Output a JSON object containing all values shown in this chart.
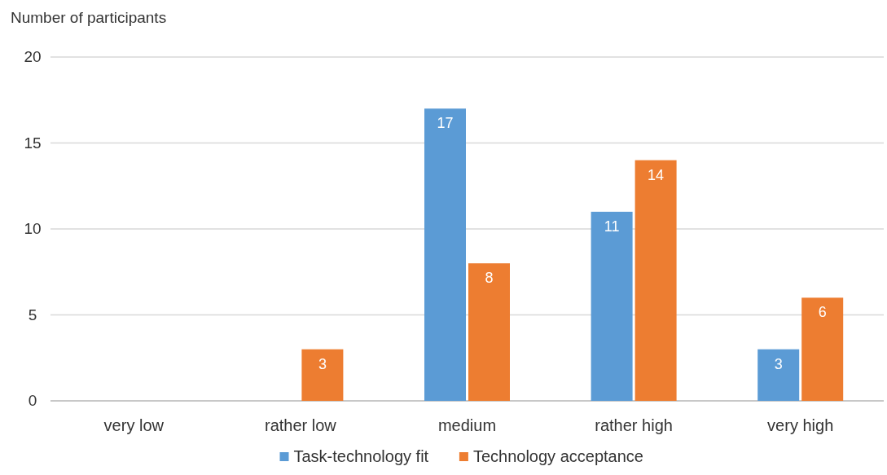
{
  "chart_data": {
    "type": "bar",
    "ylabel": "Number of participants",
    "categories": [
      "very low",
      "rather low",
      "medium",
      "rather high",
      "very high"
    ],
    "series": [
      {
        "name": "Task-technology fit",
        "color": "#5b9bd5",
        "values": [
          null,
          null,
          17,
          11,
          3
        ]
      },
      {
        "name": "Technology acceptance",
        "color": "#ed7d31",
        "values": [
          null,
          3,
          8,
          14,
          6
        ]
      }
    ],
    "ylim": [
      0,
      20
    ],
    "yticks": [
      0,
      5,
      10,
      15,
      20
    ],
    "grid": "y",
    "legend": "bottom",
    "data_labels": true
  }
}
